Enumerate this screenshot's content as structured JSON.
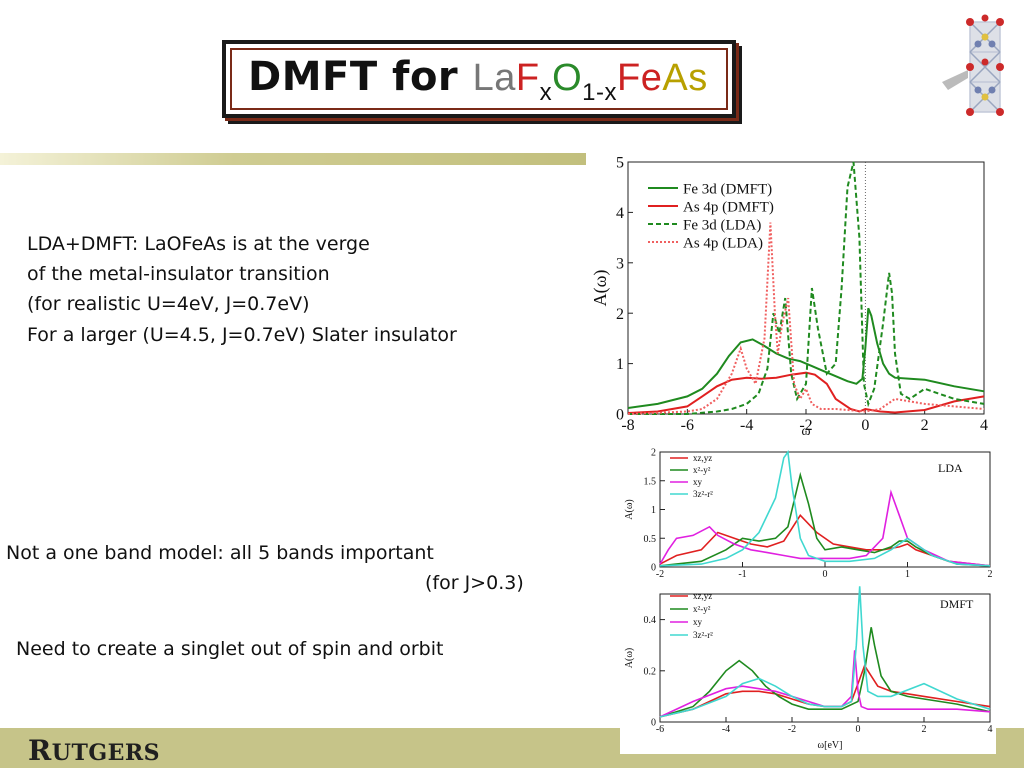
{
  "title": {
    "prefix": "DMFT for",
    "formula": {
      "la": "La",
      "f": "F",
      "x": "x",
      "o": "O",
      "sub2": "1-x",
      "fe": "Fe",
      "as": "As"
    }
  },
  "text_blocks": {
    "line1": "LDA+DMFT: LaOFeAs is at the verge",
    "line2": "of the metal-insulator transition",
    "line3": "(for realistic U=4eV, J=0.7eV)",
    "line4": "For a larger (U=4.5, J=0.7eV) Slater insulator",
    "line5": "Not a one band model: all 5 bands important",
    "line6": "(for J>0.3)",
    "line7": "Need to create a singlet out of spin and orbit"
  },
  "footer": {
    "logo_text_big": "R",
    "logo_text_rest": "UTGERS"
  },
  "colors": {
    "green": "#1f8a1f",
    "red": "#e02020",
    "magenta": "#e020e0",
    "cyan": "#40d8d0",
    "bar": "#c6c489"
  },
  "chart_data": [
    {
      "type": "line",
      "xlabel": "ω",
      "ylabel": "A(ω)",
      "xlim": [
        -8,
        4
      ],
      "ylim": [
        0,
        5
      ],
      "xticks": [
        "-8",
        "-6",
        "-4",
        "-2",
        "0",
        "2",
        "4"
      ],
      "yticks": [
        "0",
        "1",
        "2",
        "3",
        "4",
        "5"
      ],
      "legend_position": "top-left",
      "series": [
        {
          "name": "Fe 3d (DMFT)",
          "color": "#1f8a1f",
          "dash": "none",
          "x": [
            -8,
            -7,
            -6,
            -5.5,
            -5,
            -4.6,
            -4.2,
            -3.8,
            -3.4,
            -3,
            -2.6,
            -2.2,
            -1.8,
            -1.4,
            -1,
            -0.6,
            -0.3,
            -0.1,
            0,
            0.1,
            0.2,
            0.4,
            0.6,
            0.8,
            1,
            1.5,
            2,
            3,
            4
          ],
          "y": [
            0.12,
            0.2,
            0.35,
            0.5,
            0.8,
            1.15,
            1.42,
            1.48,
            1.35,
            1.2,
            1.1,
            1.05,
            0.95,
            0.85,
            0.75,
            0.65,
            0.6,
            0.7,
            1.3,
            2.1,
            1.95,
            1.4,
            1.0,
            0.8,
            0.72,
            0.7,
            0.68,
            0.55,
            0.45
          ]
        },
        {
          "name": "As 4p (DMFT)",
          "color": "#e02020",
          "dash": "none",
          "x": [
            -8,
            -7,
            -6,
            -5.5,
            -5,
            -4.5,
            -4,
            -3.5,
            -3,
            -2.5,
            -2,
            -1.7,
            -1.3,
            -1,
            -0.5,
            -0.2,
            0,
            0.5,
            1,
            2,
            3,
            4
          ],
          "y": [
            0.02,
            0.05,
            0.15,
            0.35,
            0.55,
            0.68,
            0.72,
            0.7,
            0.72,
            0.78,
            0.82,
            0.78,
            0.6,
            0.3,
            0.1,
            0.05,
            0.1,
            0.05,
            0.03,
            0.08,
            0.25,
            0.35
          ]
        },
        {
          "name": "Fe 3d (LDA)",
          "color": "#1f8a1f",
          "dash": "5,3",
          "x": [
            -8,
            -6,
            -5,
            -4.5,
            -4,
            -3.6,
            -3.3,
            -3.1,
            -2.9,
            -2.7,
            -2.5,
            -2.3,
            -2,
            -1.8,
            -1.6,
            -1.3,
            -1,
            -0.8,
            -0.6,
            -0.4,
            -0.2,
            -0.05,
            0.1,
            0.3,
            0.6,
            0.8,
            0.9,
            1,
            1.2,
            1.5,
            2,
            3,
            4
          ],
          "y": [
            0,
            0,
            0.05,
            0.1,
            0.2,
            0.4,
            0.9,
            2.0,
            1.6,
            2.3,
            0.8,
            0.3,
            0.6,
            2.5,
            1.7,
            0.8,
            1.0,
            2.5,
            4.5,
            5.0,
            3.5,
            0.6,
            0.2,
            0.5,
            1.8,
            2.8,
            2.4,
            1.2,
            0.4,
            0.3,
            0.5,
            0.3,
            0.2
          ]
        },
        {
          "name": "As 4p (LDA)",
          "color": "#f06060",
          "dash": "2,2",
          "x": [
            -8,
            -6,
            -5.5,
            -5,
            -4.5,
            -4.2,
            -4,
            -3.7,
            -3.4,
            -3.2,
            -3.05,
            -2.95,
            -2.8,
            -2.6,
            -2.4,
            -2.2,
            -2,
            -1.8,
            -1.5,
            -1,
            0,
            0.5,
            1,
            2,
            3,
            4
          ],
          "y": [
            0,
            0.05,
            0.1,
            0.3,
            0.8,
            1.3,
            0.9,
            0.6,
            1.5,
            3.8,
            2.0,
            1.2,
            1.8,
            2.3,
            0.6,
            0.3,
            0.5,
            0.2,
            0.1,
            0.1,
            0.05,
            0.1,
            0.3,
            0.2,
            0.15,
            0.1
          ]
        }
      ]
    },
    {
      "type": "line",
      "title": "LDA",
      "ylabel": "A(ω)",
      "xlim": [
        -2,
        2
      ],
      "ylim": [
        0,
        2
      ],
      "xticks": [
        "-2",
        "-1",
        "0",
        "1",
        "2"
      ],
      "yticks": [
        "0",
        "0.5",
        "1",
        "1.5",
        "2"
      ],
      "series": [
        {
          "name": "xz,yz",
          "color": "#e02020",
          "x": [
            -2,
            -1.8,
            -1.5,
            -1.3,
            -1.1,
            -0.9,
            -0.7,
            -0.5,
            -0.3,
            -0.1,
            0.1,
            0.3,
            0.5,
            0.7,
            0.9,
            1.0,
            1.1,
            1.3,
            1.5,
            2
          ],
          "y": [
            0.05,
            0.2,
            0.3,
            0.6,
            0.5,
            0.4,
            0.35,
            0.45,
            0.9,
            0.6,
            0.4,
            0.35,
            0.3,
            0.3,
            0.35,
            0.4,
            0.3,
            0.2,
            0.1,
            0.02
          ]
        },
        {
          "name": "x²-y²",
          "color": "#1f8a1f",
          "x": [
            -2,
            -1.5,
            -1.2,
            -1.0,
            -0.8,
            -0.6,
            -0.45,
            -0.3,
            -0.2,
            -0.1,
            0.0,
            0.2,
            0.4,
            0.6,
            0.8,
            0.9,
            1.0,
            1.1,
            1.3,
            1.6,
            2
          ],
          "y": [
            0.02,
            0.1,
            0.3,
            0.5,
            0.45,
            0.5,
            0.7,
            1.6,
            1.1,
            0.5,
            0.3,
            0.35,
            0.3,
            0.25,
            0.35,
            0.45,
            0.45,
            0.35,
            0.2,
            0.05,
            0.02
          ]
        },
        {
          "name": "xy",
          "color": "#e020e0",
          "x": [
            -2,
            -1.9,
            -1.8,
            -1.6,
            -1.4,
            -1.3,
            -1.1,
            -0.9,
            -0.7,
            -0.5,
            -0.3,
            0,
            0.3,
            0.5,
            0.7,
            0.8,
            0.9,
            1.0,
            1.2,
            1.5,
            2
          ],
          "y": [
            0.05,
            0.3,
            0.5,
            0.55,
            0.7,
            0.55,
            0.4,
            0.3,
            0.25,
            0.2,
            0.15,
            0.15,
            0.15,
            0.2,
            0.5,
            1.3,
            0.9,
            0.5,
            0.3,
            0.1,
            0.02
          ]
        },
        {
          "name": "3z²-r²",
          "color": "#40d8d0",
          "x": [
            -2,
            -1.5,
            -1.2,
            -1.0,
            -0.8,
            -0.6,
            -0.5,
            -0.45,
            -0.4,
            -0.3,
            -0.2,
            0,
            0.3,
            0.6,
            0.8,
            1.0,
            1.1,
            1.3,
            1.6,
            2
          ],
          "y": [
            0.02,
            0.05,
            0.15,
            0.3,
            0.6,
            1.2,
            1.9,
            2.0,
            1.4,
            0.5,
            0.2,
            0.1,
            0.1,
            0.15,
            0.3,
            0.5,
            0.4,
            0.2,
            0.05,
            0.02
          ]
        }
      ]
    },
    {
      "type": "line",
      "title": "DMFT",
      "xlabel": "ω[eV]",
      "ylabel": "A(ω)",
      "xlim": [
        -6,
        4
      ],
      "ylim": [
        0,
        0.5
      ],
      "xticks": [
        "-6",
        "-4",
        "-2",
        "0",
        "2",
        "4"
      ],
      "yticks": [
        "0",
        "0.2",
        "0.4"
      ],
      "series": [
        {
          "name": "xz,yz",
          "color": "#e02020",
          "x": [
            -6,
            -5,
            -4.5,
            -4,
            -3.5,
            -3,
            -2.5,
            -2,
            -1.5,
            -1,
            -0.5,
            -0.2,
            0,
            0.2,
            0.4,
            0.6,
            1,
            1.5,
            2,
            3,
            4
          ],
          "y": [
            0.02,
            0.05,
            0.08,
            0.11,
            0.12,
            0.12,
            0.11,
            0.09,
            0.07,
            0.06,
            0.06,
            0.08,
            0.15,
            0.22,
            0.18,
            0.14,
            0.12,
            0.11,
            0.1,
            0.08,
            0.06
          ]
        },
        {
          "name": "x²-y²",
          "color": "#1f8a1f",
          "x": [
            -6,
            -5,
            -4.5,
            -4,
            -3.6,
            -3.2,
            -2.8,
            -2.4,
            -2,
            -1.5,
            -1,
            -0.5,
            0,
            0.2,
            0.4,
            0.5,
            0.7,
            1,
            1.5,
            2,
            3,
            4
          ],
          "y": [
            0.02,
            0.06,
            0.12,
            0.2,
            0.24,
            0.2,
            0.14,
            0.1,
            0.07,
            0.05,
            0.05,
            0.05,
            0.08,
            0.2,
            0.37,
            0.3,
            0.18,
            0.12,
            0.1,
            0.09,
            0.07,
            0.04
          ]
        },
        {
          "name": "xy",
          "color": "#e020e0",
          "x": [
            -6,
            -5,
            -4,
            -3.5,
            -3,
            -2.5,
            -2,
            -1.5,
            -1,
            -0.5,
            -0.2,
            -0.1,
            0,
            0.1,
            0.3,
            0.6,
            1,
            2,
            3,
            4
          ],
          "y": [
            0.02,
            0.08,
            0.13,
            0.14,
            0.13,
            0.12,
            0.1,
            0.08,
            0.06,
            0.06,
            0.1,
            0.28,
            0.12,
            0.06,
            0.05,
            0.05,
            0.05,
            0.05,
            0.05,
            0.04
          ]
        },
        {
          "name": "3z²-r²",
          "color": "#40d8d0",
          "x": [
            -6,
            -5,
            -4,
            -3.5,
            -3,
            -2.5,
            -2,
            -1.5,
            -1,
            -0.5,
            -0.2,
            -0.05,
            0.05,
            0.15,
            0.3,
            0.6,
            1,
            2,
            3,
            4
          ],
          "y": [
            0.02,
            0.05,
            0.1,
            0.15,
            0.17,
            0.14,
            0.1,
            0.07,
            0.06,
            0.06,
            0.08,
            0.3,
            0.53,
            0.3,
            0.12,
            0.1,
            0.1,
            0.15,
            0.09,
            0.05
          ]
        }
      ]
    }
  ]
}
